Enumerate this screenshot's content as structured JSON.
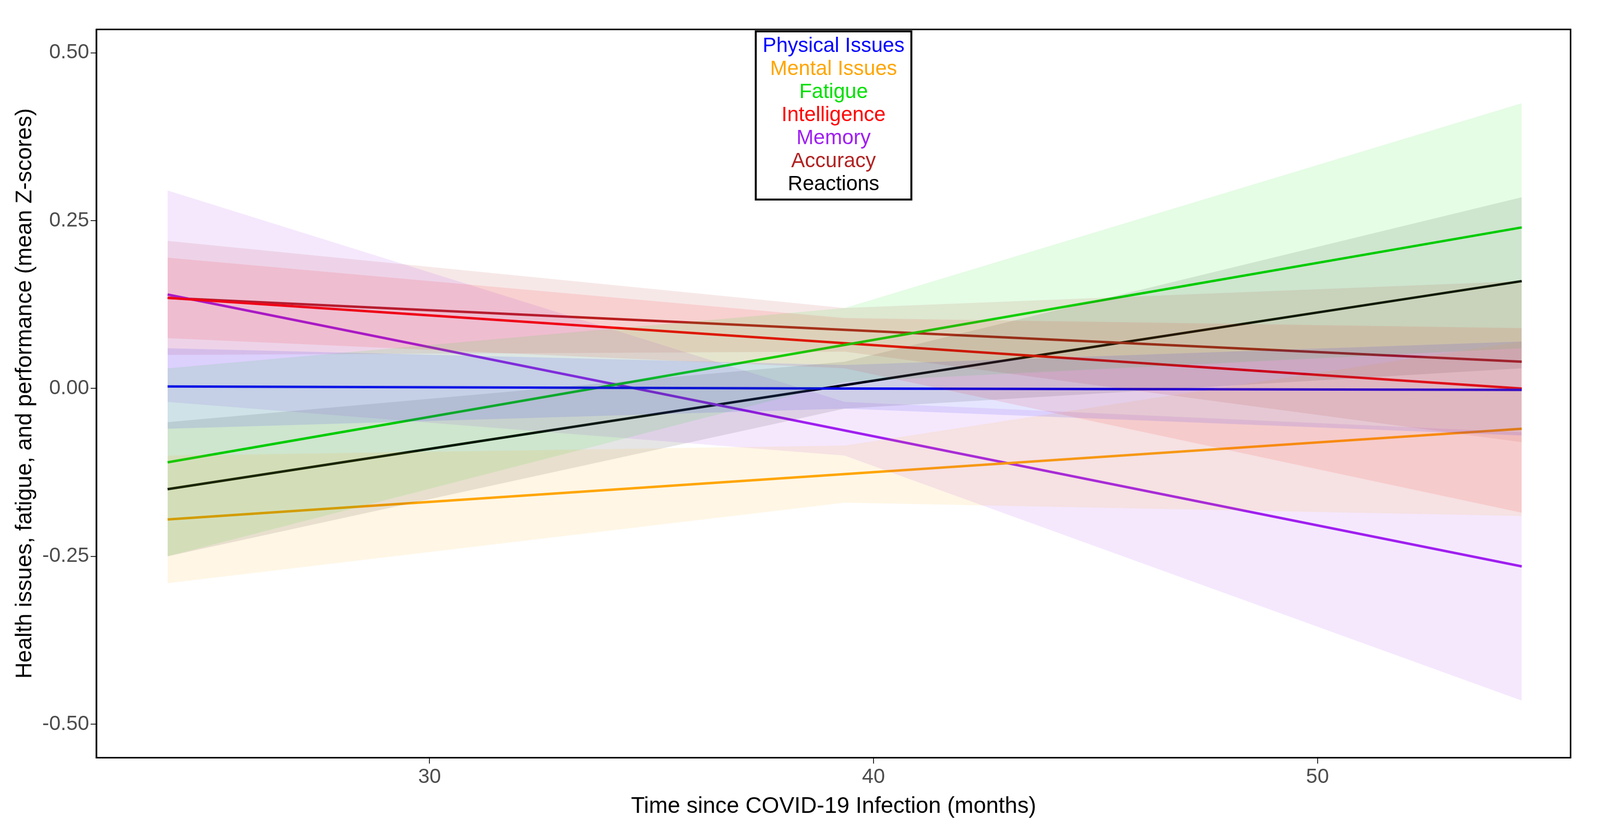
{
  "chart_data": {
    "type": "line",
    "x_label": "Time since COVID-19 Infection (months)",
    "y_label": "Health issues, fatigue, and performance (mean Z-scores)",
    "x": [
      24.1,
      39.35,
      54.6
    ],
    "xlim": [
      22.5,
      55.7
    ],
    "xticks": [
      30,
      40,
      50
    ],
    "ylim": [
      -0.55,
      0.535
    ],
    "yticks": [
      {
        "value": -0.5,
        "label": "-0.50"
      },
      {
        "value": -0.25,
        "label": "-0.25"
      },
      {
        "value": 0,
        "label": "0.00"
      },
      {
        "value": 0.25,
        "label": "0.25"
      },
      {
        "value": 0.5,
        "label": "0.50"
      }
    ],
    "grid": false,
    "legend": "top",
    "series": [
      {
        "name": "Physical Issues",
        "color": "#0000FF",
        "values": [
          0.003,
          0.0,
          -0.002
        ],
        "lower": [
          -0.06,
          -0.03,
          -0.07
        ],
        "upper": [
          0.06,
          0.035,
          0.07
        ]
      },
      {
        "name": "Mental Issues",
        "color": "#FFA500",
        "values": [
          -0.195,
          -0.1275,
          -0.06
        ],
        "lower": [
          -0.29,
          -0.17,
          -0.19
        ],
        "upper": [
          -0.1,
          -0.085,
          0.07
        ]
      },
      {
        "name": "Fatigue",
        "color": "#00E000",
        "values": [
          -0.11,
          0.065,
          0.24
        ],
        "lower": [
          -0.25,
          0.01,
          0.06
        ],
        "upper": [
          0.03,
          0.12,
          0.425
        ]
      },
      {
        "name": "Intelligence",
        "color": "#FF0000",
        "values": [
          0.135,
          0.0675,
          0.0
        ],
        "lower": [
          0.075,
          0.03,
          -0.185
        ],
        "upper": [
          0.195,
          0.105,
          0.09
        ]
      },
      {
        "name": "Memory",
        "color": "#A020F0",
        "values": [
          0.14,
          -0.0625,
          -0.265
        ],
        "lower": [
          -0.02,
          -0.1,
          -0.465
        ],
        "upper": [
          0.295,
          -0.02,
          -0.065
        ]
      },
      {
        "name": "Accuracy",
        "color": "#B22222",
        "values": [
          0.135,
          0.0875,
          0.04
        ],
        "lower": [
          0.05,
          0.055,
          -0.08
        ],
        "upper": [
          0.22,
          0.12,
          0.16
        ]
      },
      {
        "name": "Reactions",
        "color": "#000000",
        "values": [
          -0.15,
          0.005,
          0.16
        ],
        "lower": [
          -0.25,
          -0.03,
          0.03
        ],
        "upper": [
          -0.05,
          0.04,
          0.285
        ]
      }
    ]
  }
}
